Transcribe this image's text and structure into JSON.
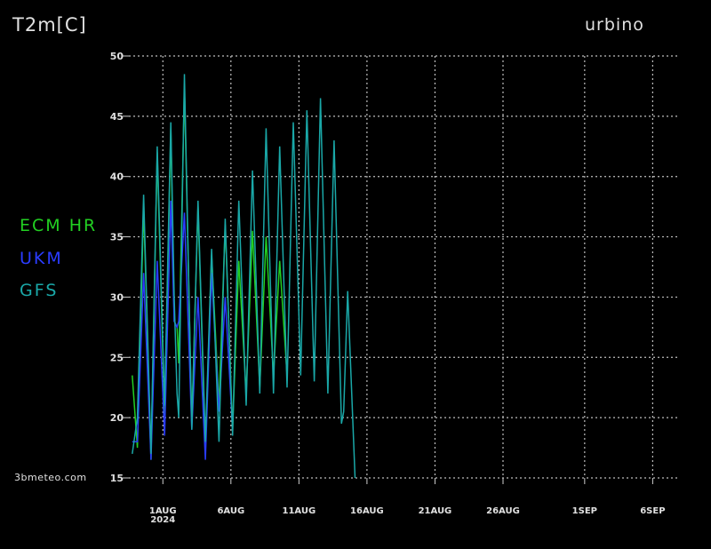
{
  "header": {
    "variable": "T2m[C]",
    "location": "urbino"
  },
  "credit": "3bmeteo.com",
  "chart_data": {
    "type": "line",
    "title": "",
    "xlabel": "",
    "ylabel": "T2m[C]",
    "ylim": [
      15,
      50
    ],
    "yticks": [
      15,
      20,
      25,
      30,
      35,
      40,
      45,
      50
    ],
    "xlim": [
      "2024-07-29T12:00",
      "2024-09-08T00:00"
    ],
    "xticks": [
      {
        "date": "2024-08-01",
        "label": "1AUG",
        "sublabel": "2024"
      },
      {
        "date": "2024-08-06",
        "label": "6AUG",
        "sublabel": ""
      },
      {
        "date": "2024-08-11",
        "label": "11AUG",
        "sublabel": ""
      },
      {
        "date": "2024-08-16",
        "label": "16AUG",
        "sublabel": ""
      },
      {
        "date": "2024-08-21",
        "label": "21AUG",
        "sublabel": ""
      },
      {
        "date": "2024-08-26",
        "label": "26AUG",
        "sublabel": ""
      },
      {
        "date": "2024-09-01",
        "label": "1SEP",
        "sublabel": ""
      },
      {
        "date": "2024-09-06",
        "label": "6SEP",
        "sublabel": ""
      }
    ],
    "grid": true,
    "legend_position": "left",
    "series": [
      {
        "name": "ECM HR",
        "color": "#22d022",
        "points": [
          [
            "2024-07-29T18:00",
            23.5
          ],
          [
            "2024-07-30T03:00",
            17.5
          ],
          [
            "2024-07-30T14:00",
            37.5
          ],
          [
            "2024-07-31T03:00",
            16.5
          ],
          [
            "2024-07-31T14:00",
            42.0
          ],
          [
            "2024-08-01T03:00",
            20.0
          ],
          [
            "2024-08-01T14:00",
            44.0
          ],
          [
            "2024-08-01T20:00",
            28.0
          ],
          [
            "2024-08-02T01:00",
            27.5
          ],
          [
            "2024-08-02T04:00",
            24.5
          ],
          [
            "2024-08-02T14:00",
            47.5
          ],
          [
            "2024-08-03T03:00",
            19.5
          ],
          [
            "2024-08-03T14:00",
            37.5
          ],
          [
            "2024-08-04T03:00",
            17.5
          ],
          [
            "2024-08-04T14:00",
            33.5
          ],
          [
            "2024-08-05T03:00",
            21.0
          ],
          [
            "2024-08-05T14:00",
            36.0
          ],
          [
            "2024-08-06T03:00",
            19.0
          ],
          [
            "2024-08-06T14:00",
            33.0
          ],
          [
            "2024-08-07T03:00",
            22.0
          ],
          [
            "2024-08-07T14:00",
            35.5
          ],
          [
            "2024-08-08T03:00",
            22.5
          ],
          [
            "2024-08-08T14:00",
            35.0
          ],
          [
            "2024-08-09T03:00",
            23.5
          ],
          [
            "2024-08-09T14:00",
            33.0
          ],
          [
            "2024-08-10T03:00",
            23.5
          ]
        ]
      },
      {
        "name": "UKM",
        "color": "#2a3cff",
        "points": [
          [
            "2024-07-29T18:00",
            18.0
          ],
          [
            "2024-07-30T03:00",
            18.0
          ],
          [
            "2024-07-30T14:00",
            32.0
          ],
          [
            "2024-07-31T03:00",
            16.5
          ],
          [
            "2024-07-31T14:00",
            33.0
          ],
          [
            "2024-08-01T03:00",
            18.5
          ],
          [
            "2024-08-01T14:00",
            38.0
          ],
          [
            "2024-08-01T20:00",
            28.0
          ],
          [
            "2024-08-02T01:00",
            27.5
          ],
          [
            "2024-08-02T04:00",
            28.0
          ],
          [
            "2024-08-02T14:00",
            37.0
          ],
          [
            "2024-08-03T03:00",
            19.0
          ],
          [
            "2024-08-03T14:00",
            30.0
          ],
          [
            "2024-08-04T03:00",
            16.5
          ],
          [
            "2024-08-04T14:00",
            32.0
          ],
          [
            "2024-08-05T03:00",
            20.5
          ],
          [
            "2024-08-05T14:00",
            30.0
          ],
          [
            "2024-08-06T03:00",
            19.0
          ]
        ]
      },
      {
        "name": "GFS",
        "color": "#1aa8a8",
        "points": [
          [
            "2024-07-29T18:00",
            17.0
          ],
          [
            "2024-07-30T03:00",
            20.0
          ],
          [
            "2024-07-30T14:00",
            38.5
          ],
          [
            "2024-07-31T03:00",
            17.0
          ],
          [
            "2024-07-31T14:00",
            42.5
          ],
          [
            "2024-08-01T03:00",
            21.0
          ],
          [
            "2024-08-01T14:00",
            44.5
          ],
          [
            "2024-08-01T20:00",
            30.0
          ],
          [
            "2024-08-02T01:00",
            22.0
          ],
          [
            "2024-08-02T04:00",
            20.0
          ],
          [
            "2024-08-02T14:00",
            48.5
          ],
          [
            "2024-08-03T03:00",
            19.0
          ],
          [
            "2024-08-03T14:00",
            38.0
          ],
          [
            "2024-08-04T03:00",
            18.0
          ],
          [
            "2024-08-04T14:00",
            34.0
          ],
          [
            "2024-08-05T03:00",
            18.0
          ],
          [
            "2024-08-05T14:00",
            36.5
          ],
          [
            "2024-08-06T03:00",
            18.5
          ],
          [
            "2024-08-06T14:00",
            38.0
          ],
          [
            "2024-08-07T03:00",
            21.0
          ],
          [
            "2024-08-07T14:00",
            40.5
          ],
          [
            "2024-08-08T03:00",
            22.0
          ],
          [
            "2024-08-08T14:00",
            44.0
          ],
          [
            "2024-08-09T03:00",
            22.0
          ],
          [
            "2024-08-09T14:00",
            42.5
          ],
          [
            "2024-08-10T03:00",
            22.5
          ],
          [
            "2024-08-10T14:00",
            44.5
          ],
          [
            "2024-08-11T03:00",
            23.5
          ],
          [
            "2024-08-11T14:00",
            45.5
          ],
          [
            "2024-08-12T03:00",
            23.0
          ],
          [
            "2024-08-12T14:00",
            46.5
          ],
          [
            "2024-08-13T03:00",
            22.0
          ],
          [
            "2024-08-13T14:00",
            43.0
          ],
          [
            "2024-08-14T03:00",
            19.5
          ],
          [
            "2024-08-14T07:00",
            20.5
          ],
          [
            "2024-08-14T14:00",
            30.5
          ],
          [
            "2024-08-15T03:00",
            15.0
          ]
        ]
      }
    ]
  }
}
